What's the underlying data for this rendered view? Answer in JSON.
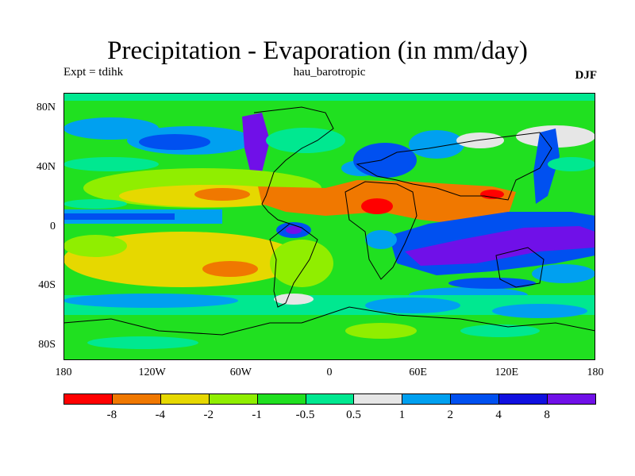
{
  "title": "Precipitation - Evaporation (in mm/day)",
  "subtitle_left": "Expt = tdihk",
  "subtitle_center": "hau_barotropic",
  "subtitle_right": "DJF",
  "y_axis": {
    "ticks": [
      {
        "label": "80N",
        "lat": 80
      },
      {
        "label": "40N",
        "lat": 40
      },
      {
        "label": "0",
        "lat": 0
      },
      {
        "label": "40S",
        "lat": -40
      },
      {
        "label": "80S",
        "lat": -80
      }
    ],
    "range": [
      -90,
      90
    ]
  },
  "x_axis": {
    "ticks": [
      {
        "label": "180",
        "lon": -180
      },
      {
        "label": "120W",
        "lon": -120
      },
      {
        "label": "60W",
        "lon": -60
      },
      {
        "label": "0",
        "lon": 0
      },
      {
        "label": "60E",
        "lon": 60
      },
      {
        "label": "120E",
        "lon": 120
      },
      {
        "label": "180",
        "lon": 180
      }
    ],
    "range": [
      -180,
      180
    ]
  },
  "colorbar": {
    "colors": [
      "#ff0000",
      "#f07800",
      "#e6d800",
      "#90ee00",
      "#20e020",
      "#00e890",
      "#e6e6e6",
      "#00a0f0",
      "#0050f0",
      "#1010e0",
      "#7010e8"
    ],
    "labels": [
      "-8",
      "-4",
      "-2",
      "-1",
      "-0.5",
      "0.5",
      "1",
      "2",
      "4",
      "8"
    ]
  }
}
